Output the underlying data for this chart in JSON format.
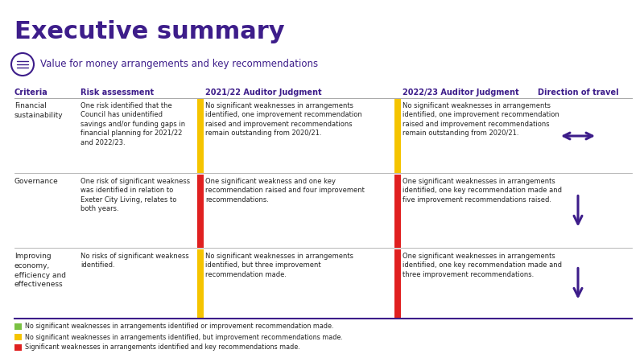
{
  "title": "Executive summary",
  "title_color": "#3d1d8a",
  "subtitle": "Value for money arrangements and key recommendations",
  "subtitle_color": "#3d1d8a",
  "purple": "#3d1d8a",
  "text_color": "#222222",
  "line_color": "#aaaaaa",
  "bg_color": "#ffffff",
  "rows": [
    {
      "criteria": "Financial\nsustainability",
      "risk": "One risk identified that the\nCouncil has unidentified\nsavings and/or funding gaps in\nfinancial planning for 2021/22\nand 2022/23.",
      "j2122": "No significant weaknesses in arrangements\nidentified, one improvement recommendation\nraised and improvement recommendations\nremain outstanding from 2020/21.",
      "j2122_color": "#f5c400",
      "j2223": "No significant weaknesses in arrangements\nidentified, one improvement recommendation\nraised and improvement recommendations\nremain outstanding from 2020/21.",
      "j2223_color": "#f5c400",
      "direction": "horizontal"
    },
    {
      "criteria": "Governance",
      "risk": "One risk of significant weakness\nwas identified in relation to\nExeter City Living, relates to\nboth years.",
      "j2122": "One significant weakness and one key\nrecommendation raised and four improvement\nrecommendations.",
      "j2122_color": "#e02020",
      "j2223": "One significant weaknesses in arrangements\nidentified, one key recommendation made and\nfive improvement recommendations raised.",
      "j2223_color": "#e02020",
      "direction": "down"
    },
    {
      "criteria": "Improving\neconomy,\nefficiency and\neffectiveness",
      "risk": "No risks of significant weakness\nidentified.",
      "j2122": "No significant weaknesses in arrangements\nidentified, but three improvement\nrecommendation made.",
      "j2122_color": "#f5c400",
      "j2223": "One significant weaknesses in arrangements\nidentified, one key recommendation made and\nthree improvement recommendations.",
      "j2223_color": "#e02020",
      "direction": "down"
    }
  ],
  "legend": [
    {
      "color": "#7ac142",
      "text": "No significant weaknesses in arrangements identified or improvement recommendation made."
    },
    {
      "color": "#f5c400",
      "text": "No significant weaknesses in arrangements identified, but improvement recommendations made."
    },
    {
      "color": "#e02020",
      "text": "Significant weaknesses in arrangements identified and key recommendations made."
    }
  ]
}
